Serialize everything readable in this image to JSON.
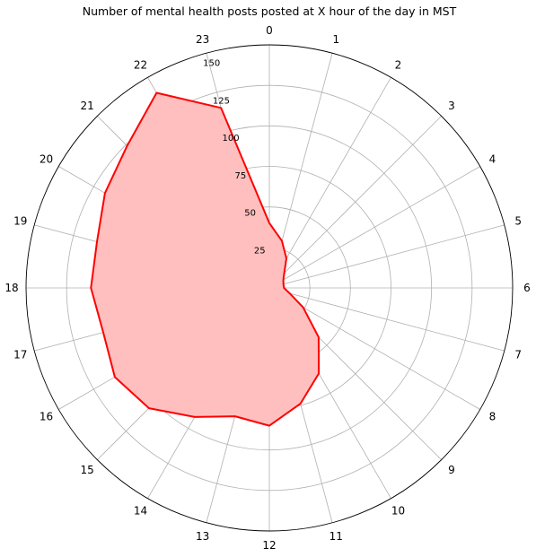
{
  "chart_data": {
    "type": "radar",
    "title": "Number of mental health posts posted at X hour of the day in MST",
    "categories": [
      "0",
      "1",
      "2",
      "3",
      "4",
      "5",
      "6",
      "7",
      "8",
      "9",
      "10",
      "11",
      "12",
      "13",
      "14",
      "15",
      "16",
      "17",
      "18",
      "19",
      "20",
      "21",
      "22",
      "23"
    ],
    "series": [
      {
        "values": [
          40,
          30,
          21,
          13,
          10,
          9,
          9,
          13,
          24,
          43,
          61,
          74,
          85,
          82,
          92,
          105,
          110,
          106,
          110,
          110,
          117,
          124,
          139,
          115
        ]
      }
    ],
    "rlim": [
      0,
      150
    ],
    "r_ticks": [
      25,
      50,
      75,
      100,
      125,
      150
    ],
    "grid": true,
    "colors": {
      "line": "#ff0000",
      "fill": "#ffbfbf",
      "grid": "#b0b0b0",
      "frame": "#000000"
    }
  }
}
